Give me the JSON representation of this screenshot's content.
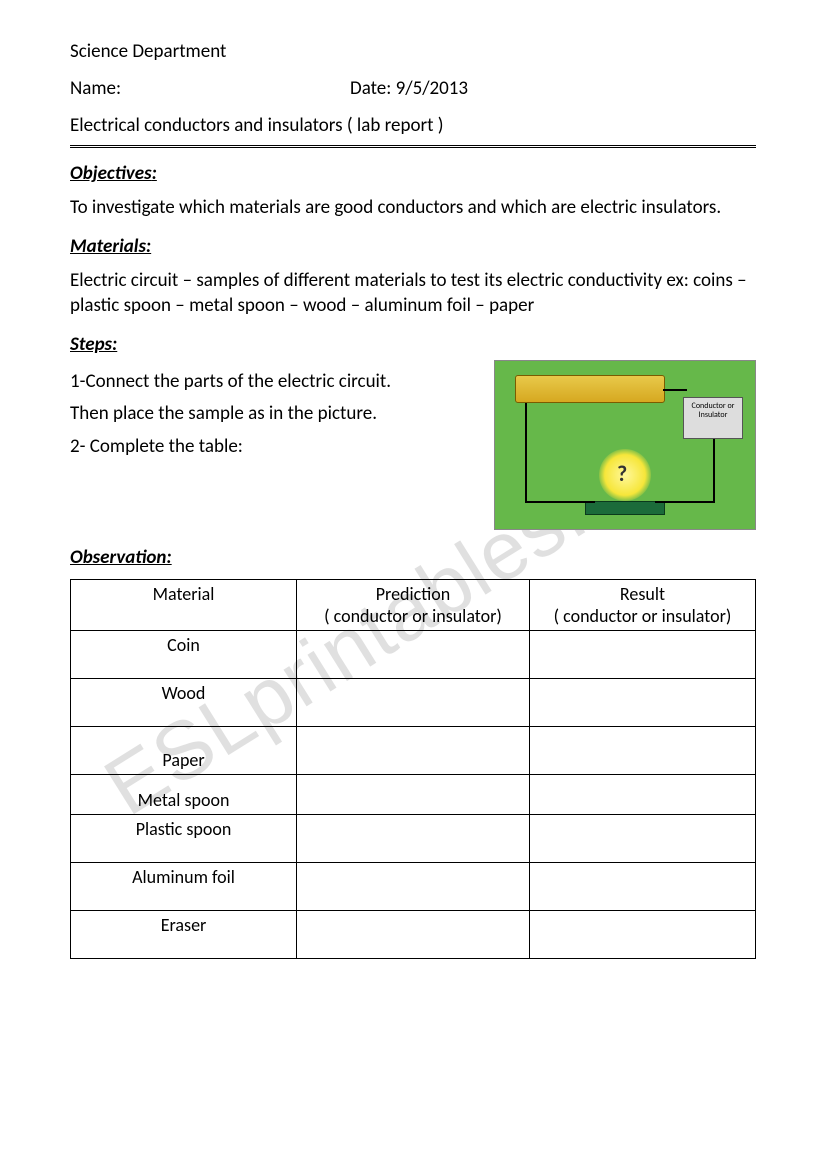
{
  "header": {
    "department": "Science Department",
    "name_label": "Name:",
    "date_label": "Date:",
    "date_value": "9/5/2013",
    "title": "Electrical conductors and insulators ( lab report )"
  },
  "sections": {
    "objectives_head": "Objectives",
    "objectives_text": "To investigate which materials are good conductors and which are electric insulators.",
    "materials_head": "Materials:",
    "materials_text": "Electric circuit – samples of different materials to test its electric conductivity ex: coins – plastic spoon – metal spoon – wood – aluminum foil – paper",
    "steps_head": "Steps:",
    "step1a": "1-Connect the parts of the electric circuit.",
    "step1b": "Then place the sample as in the picture.",
    "step2": "2- Complete the table:",
    "observation_head": "Observation:"
  },
  "circuit": {
    "test_box_label": "Conductor or Insulator",
    "bulb_symbol": "?"
  },
  "table": {
    "columns": [
      "Material",
      "Prediction\n( conductor or insulator)",
      "Result\n( conductor or insulator)"
    ],
    "col_widths": [
      "33%",
      "34%",
      "33%"
    ],
    "rows": [
      {
        "material": "Coin",
        "height": "row-tall",
        "valign": "top"
      },
      {
        "material": "Wood",
        "height": "row-tall",
        "valign": "top"
      },
      {
        "material": "Paper",
        "height": "row-tall",
        "valign": "bottom"
      },
      {
        "material": "Metal spoon",
        "height": "row-med",
        "valign": "bottom"
      },
      {
        "material": "Plastic spoon",
        "height": "row-tall",
        "valign": "top"
      },
      {
        "material": "Aluminum foil",
        "height": "row-tall",
        "valign": "top"
      },
      {
        "material": "Eraser",
        "height": "row-tall",
        "valign": "top"
      }
    ]
  },
  "watermark": "ESLprintables.com",
  "colors": {
    "text": "#000000",
    "circuit_bg": "#66b84a",
    "battery": "#d6a820",
    "bulb": "#f6e63a"
  }
}
